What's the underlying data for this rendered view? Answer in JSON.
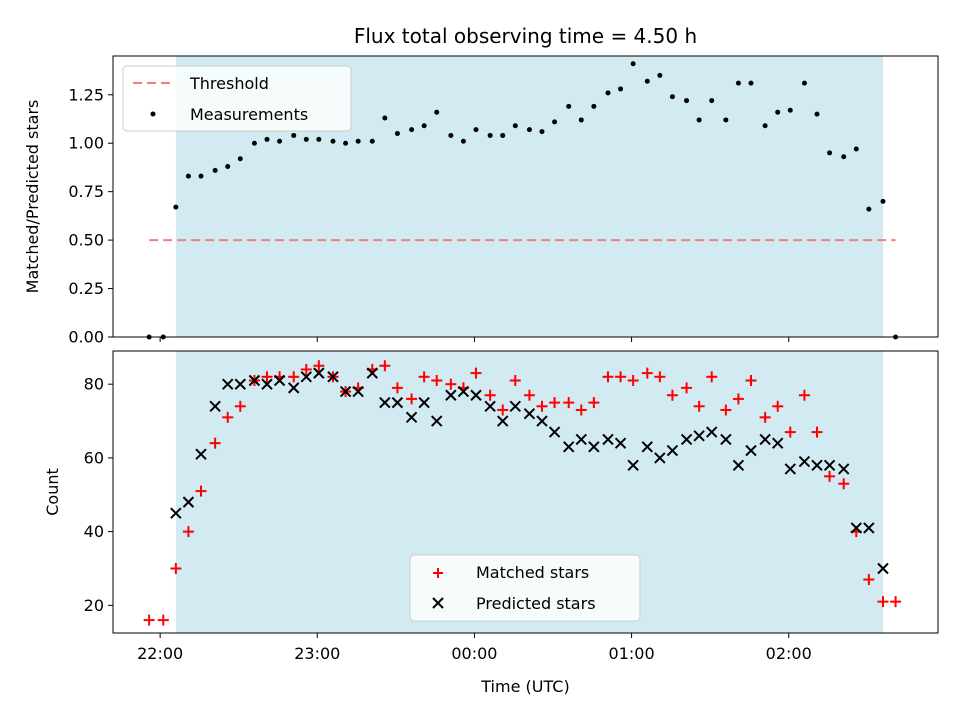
{
  "chart_data": [
    {
      "type": "scatter",
      "title": "Flux total observing time = 4.50 h",
      "ylabel": "Matched/Predicted stars",
      "ylim": [
        0,
        1.45
      ],
      "yticks": [
        "0.00",
        "0.25",
        "0.50",
        "0.75",
        "1.00",
        "1.25"
      ],
      "ytick_values": [
        0,
        0.25,
        0.5,
        0.75,
        1.0,
        1.25
      ],
      "legend_position": "upper-left",
      "shaded_region": {
        "start": 22.1,
        "end": 26.6,
        "color": "#add8e6"
      },
      "threshold": {
        "name": "Threshold",
        "value": 0.5,
        "x_start": 21.93,
        "x_end": 26.68,
        "color": "#f08080"
      },
      "series": [
        {
          "name": "Measurements",
          "color": "#000000",
          "marker": "dot",
          "x": [
            21.93,
            22.02,
            22.1,
            22.18,
            22.26,
            22.35,
            22.43,
            22.51,
            22.6,
            22.68,
            22.76,
            22.85,
            22.93,
            23.01,
            23.1,
            23.18,
            23.26,
            23.35,
            23.43,
            23.51,
            23.6,
            23.68,
            23.76,
            23.85,
            23.93,
            24.01,
            24.1,
            24.18,
            24.26,
            24.35,
            24.43,
            24.51,
            24.6,
            24.68,
            24.76,
            24.85,
            24.93,
            25.01,
            25.1,
            25.18,
            25.26,
            25.35,
            25.43,
            25.51,
            25.6,
            25.68,
            25.76,
            25.85,
            25.93,
            26.01,
            26.1,
            26.18,
            26.26,
            26.35,
            26.43,
            26.51,
            26.6,
            26.68
          ],
          "y": [
            0.0,
            0.0,
            0.67,
            0.83,
            0.83,
            0.86,
            0.88,
            0.92,
            1.0,
            1.02,
            1.01,
            1.04,
            1.02,
            1.02,
            1.01,
            1.0,
            1.01,
            1.01,
            1.13,
            1.05,
            1.07,
            1.09,
            1.16,
            1.04,
            1.01,
            1.07,
            1.04,
            1.04,
            1.09,
            1.07,
            1.06,
            1.11,
            1.19,
            1.12,
            1.19,
            1.26,
            1.28,
            1.41,
            1.32,
            1.35,
            1.24,
            1.22,
            1.12,
            1.22,
            1.12,
            1.31,
            1.31,
            1.09,
            1.16,
            1.17,
            1.31,
            1.15,
            0.95,
            0.93,
            0.97,
            0.66,
            0.7,
            0.0
          ]
        }
      ]
    },
    {
      "type": "scatter",
      "xlabel": "Time (UTC)",
      "ylabel": "Count",
      "ylim": [
        12.5,
        89
      ],
      "xlim": [
        21.7,
        26.95
      ],
      "yticks": [
        "20",
        "40",
        "60",
        "80"
      ],
      "ytick_values": [
        20,
        40,
        60,
        80
      ],
      "xticks": [
        "22:00",
        "23:00",
        "00:00",
        "01:00",
        "02:00"
      ],
      "xtick_values": [
        22,
        23,
        24,
        25,
        26
      ],
      "legend_position": "lower-center",
      "shaded_region": {
        "start": 22.1,
        "end": 26.6,
        "color": "#add8e6"
      },
      "series": [
        {
          "name": "Matched stars",
          "color": "#ff0000",
          "marker": "plus",
          "x": [
            21.93,
            22.02,
            22.1,
            22.18,
            22.26,
            22.35,
            22.43,
            22.51,
            22.6,
            22.68,
            22.76,
            22.85,
            22.93,
            23.01,
            23.1,
            23.18,
            23.26,
            23.35,
            23.43,
            23.51,
            23.6,
            23.68,
            23.76,
            23.85,
            23.93,
            24.01,
            24.1,
            24.18,
            24.26,
            24.35,
            24.43,
            24.51,
            24.6,
            24.68,
            24.76,
            24.85,
            24.93,
            25.01,
            25.1,
            25.18,
            25.26,
            25.35,
            25.43,
            25.51,
            25.6,
            25.68,
            25.76,
            25.85,
            25.93,
            26.01,
            26.1,
            26.18,
            26.26,
            26.35,
            26.43,
            26.51,
            26.6,
            26.68
          ],
          "y": [
            16,
            16,
            30,
            40,
            51,
            64,
            71,
            74,
            81,
            82,
            82,
            82,
            84,
            85,
            82,
            78,
            79,
            84,
            85,
            79,
            76,
            82,
            81,
            80,
            79,
            83,
            77,
            73,
            81,
            77,
            74,
            75,
            75,
            73,
            75,
            82,
            82,
            81,
            83,
            82,
            77,
            79,
            74,
            82,
            73,
            76,
            81,
            71,
            74,
            67,
            77,
            67,
            55,
            53,
            40,
            27,
            21,
            21
          ]
        },
        {
          "name": "Predicted stars",
          "color": "#000000",
          "marker": "x",
          "x": [
            22.1,
            22.18,
            22.26,
            22.35,
            22.43,
            22.51,
            22.6,
            22.68,
            22.76,
            22.85,
            22.93,
            23.01,
            23.1,
            23.18,
            23.26,
            23.35,
            23.43,
            23.51,
            23.6,
            23.68,
            23.76,
            23.85,
            23.93,
            24.01,
            24.1,
            24.18,
            24.26,
            24.35,
            24.43,
            24.51,
            24.6,
            24.68,
            24.76,
            24.85,
            24.93,
            25.01,
            25.1,
            25.18,
            25.26,
            25.35,
            25.43,
            25.51,
            25.6,
            25.68,
            25.76,
            25.85,
            25.93,
            26.01,
            26.1,
            26.18,
            26.26,
            26.35,
            26.43,
            26.51,
            26.6
          ],
          "y": [
            45,
            48,
            61,
            74,
            80,
            80,
            81,
            80,
            81,
            79,
            82,
            83,
            82,
            78,
            78,
            83,
            75,
            75,
            71,
            75,
            70,
            77,
            78,
            77,
            74,
            70,
            74,
            72,
            70,
            67,
            63,
            65,
            63,
            65,
            64,
            58,
            63,
            60,
            62,
            65,
            66,
            67,
            65,
            58,
            62,
            65,
            64,
            57,
            59,
            58,
            58,
            57,
            41,
            41,
            30
          ]
        }
      ]
    }
  ]
}
